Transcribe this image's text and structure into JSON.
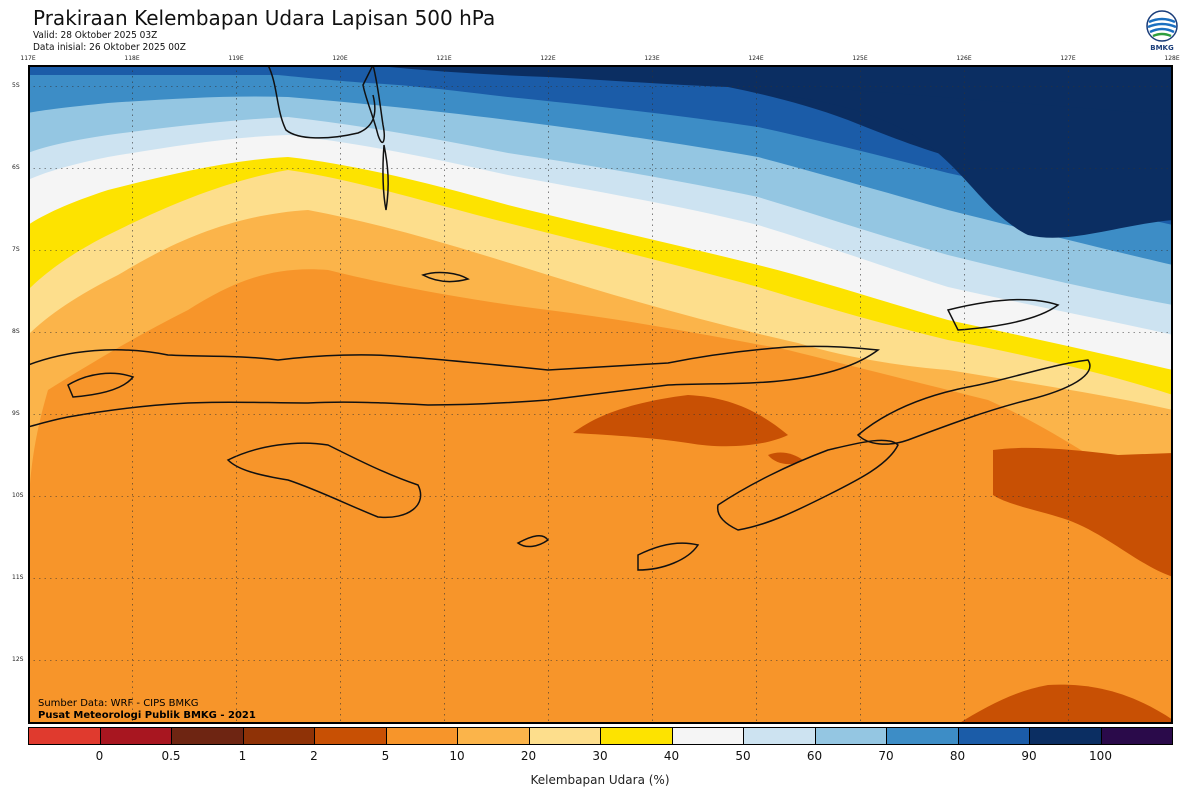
{
  "header": {
    "title": "Prakiraan Kelembapan Udara Lapisan 500 hPa",
    "valid": "Valid: 28 Oktober 2025 03Z",
    "init": "Data inisial: 26 Oktober 2025 00Z",
    "logo_text": "BMKG"
  },
  "axes": {
    "lon_labels": [
      "117E",
      "118E",
      "119E",
      "120E",
      "121E",
      "122E",
      "123E",
      "124E",
      "125E",
      "126E",
      "127E",
      "128E"
    ],
    "lat_labels": [
      "5S",
      "6S",
      "7S",
      "8S",
      "9S",
      "10S",
      "11S",
      "12S"
    ]
  },
  "credits": {
    "source": "Sumber Data: WRF - CIPS BMKG",
    "center": "Pusat Meteorologi Publik BMKG - 2021"
  },
  "colorbar": {
    "title": "Kelembapan Udara (%)",
    "ticks": [
      "0",
      "0.5",
      "1",
      "2",
      "5",
      "10",
      "20",
      "30",
      "40",
      "50",
      "60",
      "70",
      "80",
      "90",
      "100"
    ],
    "colors": [
      "#e03a2e",
      "#a81620",
      "#6e2512",
      "#8f3206",
      "#c85004",
      "#f7952a",
      "#fbb44a",
      "#fdde8c",
      "#fde300",
      "#f5f5f5",
      "#cde3f1",
      "#94c6e2",
      "#3d8dc6",
      "#1b5ca8",
      "#0b2e62",
      "#2a0a4a"
    ]
  },
  "map_colors": {
    "orange": "#f7952a",
    "dark_orange": "#c85004",
    "light_orange": "#fbb44a",
    "pale": "#fdde8c",
    "yellow": "#fde300",
    "white": "#f5f5f5",
    "light_blue": "#cde3f1",
    "sky_blue": "#94c6e2",
    "mid_blue": "#3d8dc6",
    "blue": "#1b5ca8",
    "navy": "#0b2e62",
    "coast": "#111111"
  }
}
